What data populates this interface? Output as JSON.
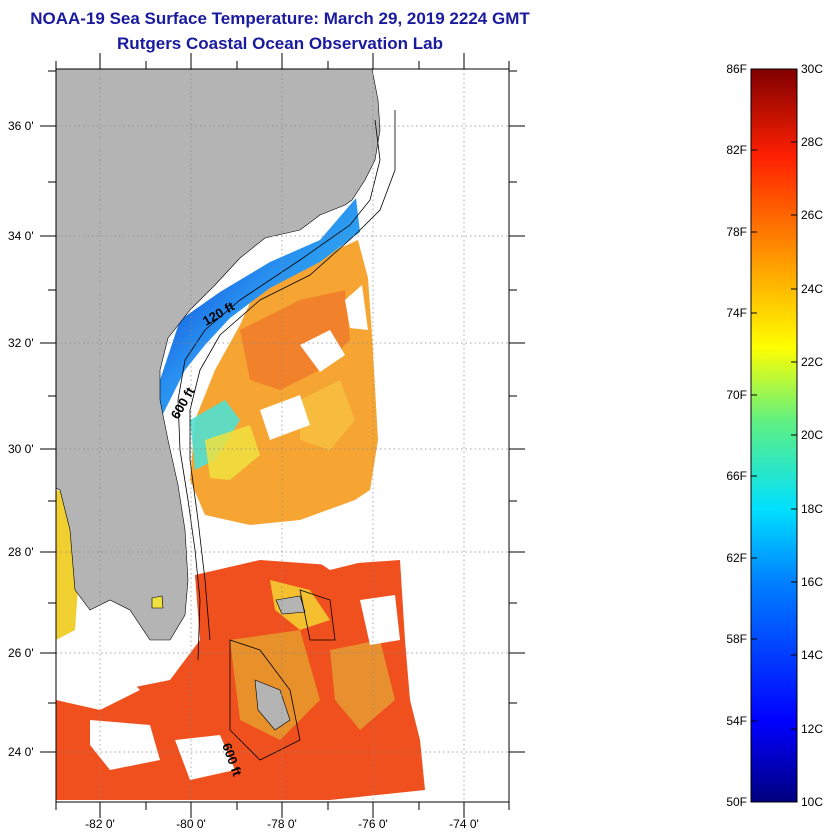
{
  "header": {
    "title": "NOAA-19 Sea Surface Temperature:  March 29, 2019 2224 GMT",
    "subtitle": "Rutgers Coastal Ocean Observation Lab"
  },
  "map": {
    "lat_ticks": [
      "36 0'",
      "34 0'",
      "32 0'",
      "30 0'",
      "28 0'",
      "26 0'",
      "24 0'"
    ],
    "lon_ticks": [
      "-82 0'",
      "-80 0'",
      "-78 0'",
      "-76 0'",
      "-74 0'"
    ],
    "contour_labels": [
      "120 ft",
      "600 ft",
      "600 ft"
    ]
  },
  "colorbar": {
    "fahrenheit_labels": [
      "86F",
      "82F",
      "78F",
      "74F",
      "70F",
      "66F",
      "62F",
      "58F",
      "54F",
      "50F"
    ],
    "celsius_labels": [
      "30C",
      "28C",
      "26C",
      "24C",
      "22C",
      "20C",
      "18C",
      "16C",
      "14C",
      "12C",
      "10C"
    ]
  },
  "colors": {
    "title": "#1a1a9e",
    "land": "#b4b4b4",
    "warm": "#f0501e",
    "orange": "#f5a028",
    "cool": "#3ca0f0"
  }
}
